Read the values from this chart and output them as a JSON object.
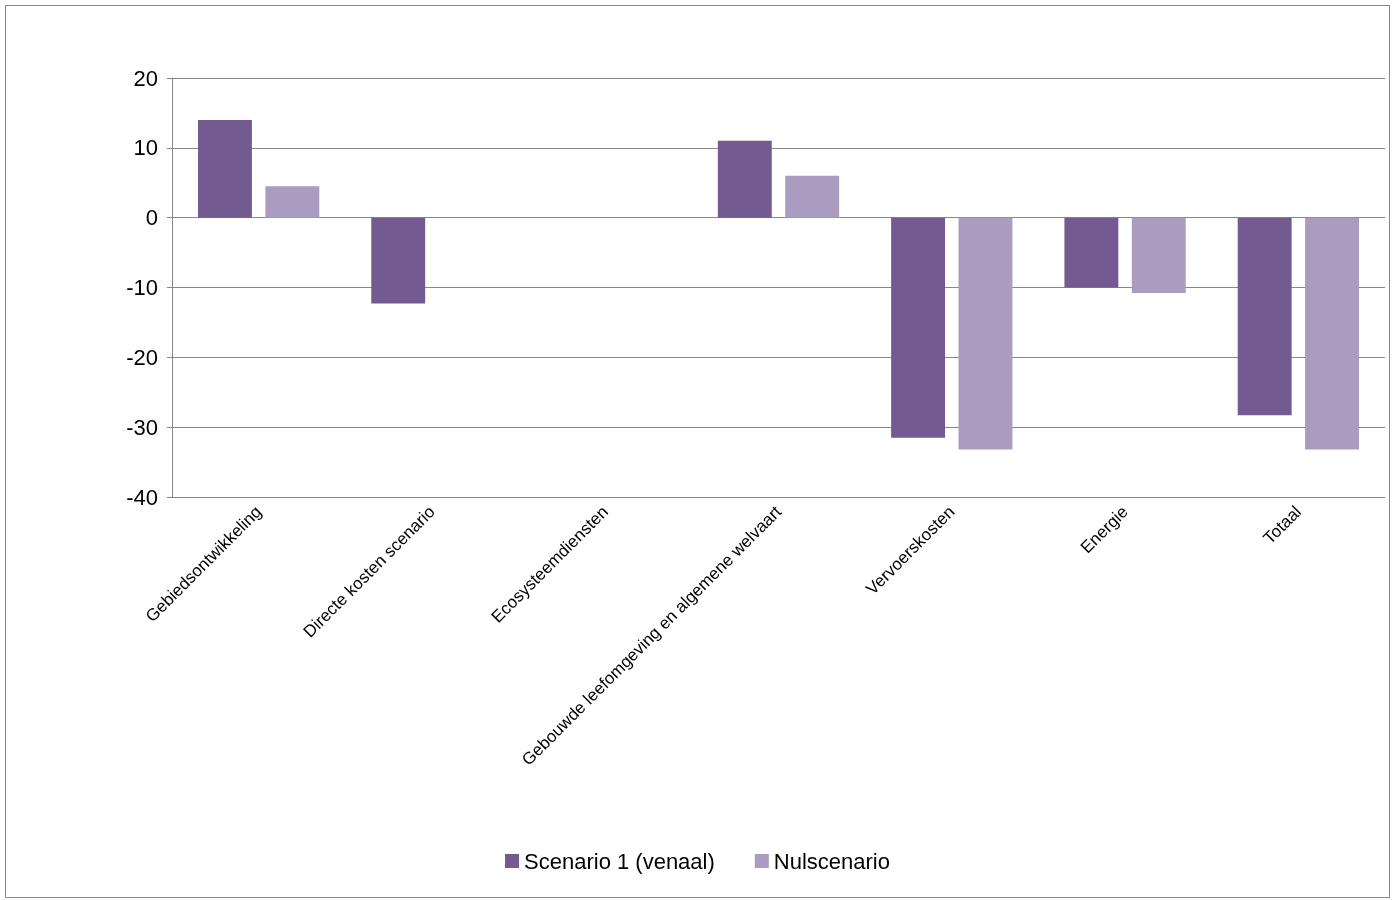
{
  "chart_data": {
    "type": "bar",
    "categories": [
      "Gebiedsontwikkeling",
      "Directe kosten scenario",
      "Ecosysteemdiensten",
      "Gebouwde leefomgeving en algemene welvaart",
      "Vervoerskosten",
      "Energie",
      "Totaal"
    ],
    "series": [
      {
        "name": "Scenario 1 (venaal)",
        "color": "#735a91",
        "values": [
          14,
          -12.3,
          0,
          11,
          -31.5,
          -10,
          -28.3
        ]
      },
      {
        "name": "Nulscenario",
        "color": "#aa9bc0",
        "values": [
          4.5,
          0,
          0,
          6,
          -33.2,
          -10.8,
          -33.2
        ]
      }
    ],
    "ylim": [
      -40,
      20
    ],
    "yticks": [
      -40,
      -30,
      -20,
      -10,
      0,
      10,
      20
    ],
    "grid": "y",
    "legend": "bottom"
  }
}
